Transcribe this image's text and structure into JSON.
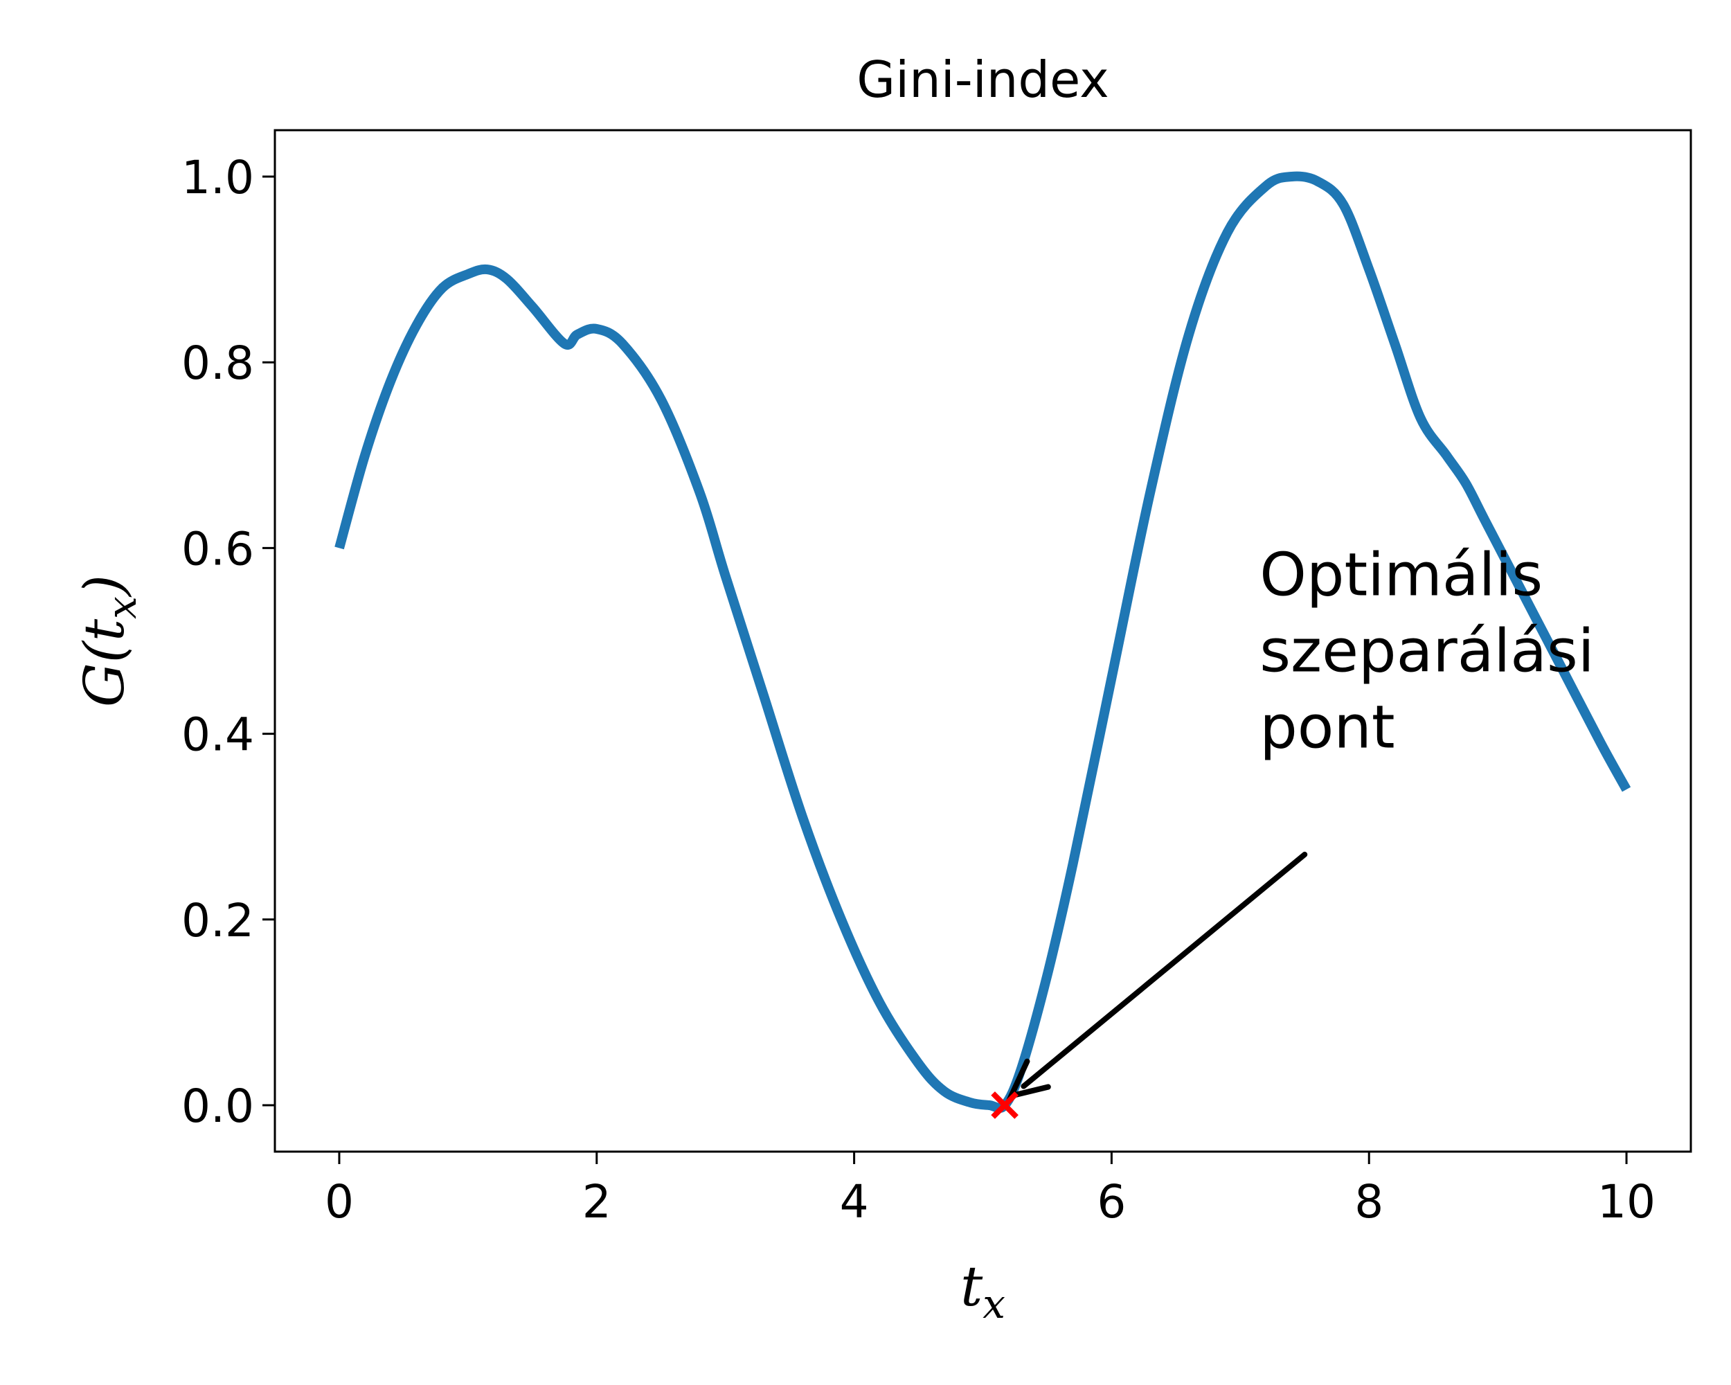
{
  "chart_data": {
    "type": "line",
    "title": "Gini-index",
    "xlabel": "t_x",
    "ylabel": "G(t_x)",
    "xlim": [
      -0.5,
      10.5
    ],
    "ylim": [
      -0.05,
      1.05
    ],
    "xticks": [
      0,
      2,
      4,
      6,
      8,
      10
    ],
    "xtick_labels": [
      "0",
      "2",
      "4",
      "6",
      "8",
      "10"
    ],
    "yticks": [
      0.0,
      0.2,
      0.4,
      0.6,
      0.8,
      1.0
    ],
    "ytick_labels": [
      "0.0",
      "0.2",
      "0.4",
      "0.6",
      "0.8",
      "1.0"
    ],
    "grid": false,
    "series": [
      {
        "color": "#1f77b4",
        "x": [
          0.0,
          0.2,
          0.4,
          0.6,
          0.8,
          1.0,
          1.15,
          1.3,
          1.5,
          1.75,
          1.85,
          2.0,
          2.2,
          2.5,
          2.8,
          3.0,
          3.3,
          3.6,
          3.9,
          4.2,
          4.5,
          4.7,
          4.9,
          5.05,
          5.17,
          5.3,
          5.5,
          5.7,
          6.0,
          6.3,
          6.6,
          6.9,
          7.2,
          7.4,
          7.6,
          7.8,
          8.0,
          8.2,
          8.4,
          8.6,
          8.75,
          8.9,
          9.2,
          9.5,
          9.8,
          10.0
        ],
        "y": [
          0.6,
          0.7,
          0.78,
          0.84,
          0.88,
          0.895,
          0.9,
          0.89,
          0.86,
          0.82,
          0.83,
          0.836,
          0.82,
          0.76,
          0.66,
          0.57,
          0.44,
          0.31,
          0.2,
          0.11,
          0.045,
          0.015,
          0.003,
          0.0,
          0.0,
          0.04,
          0.14,
          0.26,
          0.46,
          0.66,
          0.83,
          0.94,
          0.99,
          1.0,
          0.995,
          0.97,
          0.9,
          0.82,
          0.74,
          0.7,
          0.67,
          0.63,
          0.55,
          0.47,
          0.39,
          0.34
        ]
      }
    ],
    "marker": {
      "x": 5.17,
      "y": 0.0,
      "symbol": "x",
      "color": "#ff0000"
    },
    "annotation": {
      "lines": [
        "Optimális",
        "szeparálási",
        "pont"
      ],
      "text_x": 7.15,
      "text_y": 0.4,
      "arrow_from": [
        7.5,
        0.27
      ],
      "arrow_to": [
        5.22,
        0.01
      ]
    }
  }
}
